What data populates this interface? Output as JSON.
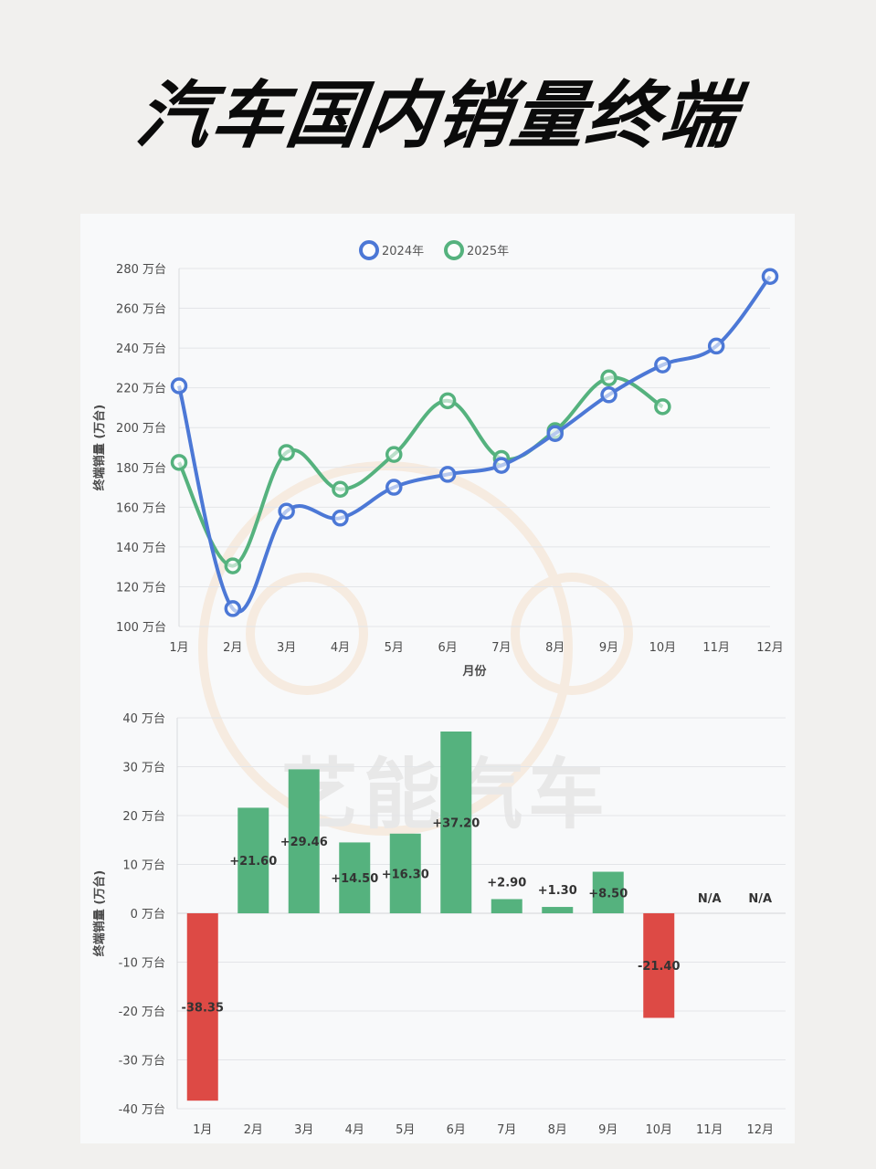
{
  "title": "汽车国内销量终端",
  "unit": "万台",
  "watermark": "艺能汽车",
  "colors": {
    "series2024": "#4c78d6",
    "series2025": "#55b27e",
    "positive": "#55b27e",
    "negative": "#dd4a45"
  },
  "chart_data": [
    {
      "type": "line",
      "categories": [
        "1月",
        "2月",
        "3月",
        "4月",
        "5月",
        "6月",
        "7月",
        "8月",
        "9月",
        "10月",
        "11月",
        "12月"
      ],
      "series": [
        {
          "name": "2024年",
          "values": [
            221,
            109,
            158,
            154.5,
            170,
            176.5,
            181,
            197,
            216.5,
            231.5,
            241,
            276
          ]
        },
        {
          "name": "2025年",
          "values": [
            182.5,
            130.5,
            187.5,
            169,
            186.5,
            213.5,
            184.5,
            198.5,
            225,
            210.5,
            null,
            null
          ]
        }
      ],
      "xlabel": "月份",
      "ylabel": "终端销量 (万台)",
      "ylim": [
        100,
        280
      ],
      "yticks": [
        "100 万台",
        "120 万台",
        "140 万台",
        "160 万台",
        "180 万台",
        "200 万台",
        "220 万台",
        "240 万台",
        "260 万台",
        "280 万台"
      ],
      "legend": "top-center",
      "grid": true
    },
    {
      "type": "bar",
      "categories": [
        "1月",
        "2月",
        "3月",
        "4月",
        "5月",
        "6月",
        "7月",
        "8月",
        "9月",
        "10月",
        "11月",
        "12月"
      ],
      "values": [
        -38.35,
        21.6,
        29.46,
        14.5,
        16.3,
        37.2,
        2.9,
        1.3,
        8.5,
        -21.4,
        null,
        null
      ],
      "labels": [
        "-38.35",
        "+21.60",
        "+29.46",
        "+14.50",
        "+16.30",
        "+37.20",
        "+2.90",
        "+1.30",
        "+8.50",
        "-21.40",
        "N/A",
        "N/A"
      ],
      "ylabel": "终端销量 (万台)",
      "ylim": [
        -40,
        40
      ],
      "yticks": [
        "-40 万台",
        "-30 万台",
        "-20 万台",
        "-10 万台",
        "0 万台",
        "10 万台",
        "20 万台",
        "30 万台",
        "40 万台"
      ],
      "grid": true
    }
  ]
}
